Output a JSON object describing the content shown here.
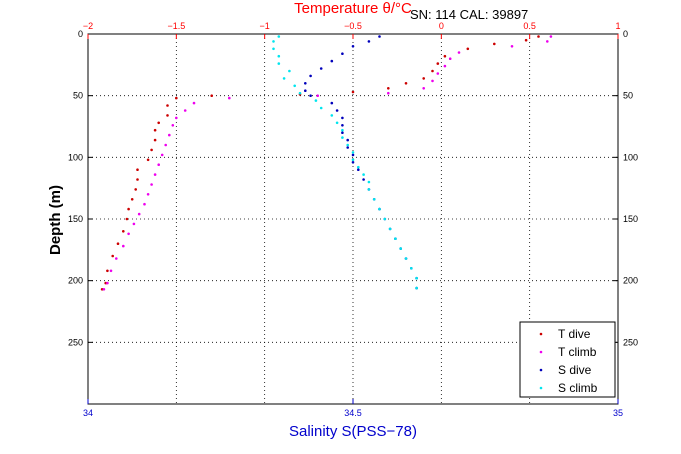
{
  "chart_data": {
    "type": "scatter",
    "top_title": "Temperature θ/°C",
    "annotation": "SN: 114  CAL: 39897",
    "ylabel": "Depth (m)",
    "xlabel_bottom": "Salinity S(PSS−78)",
    "y_axis": {
      "range": [
        0,
        300
      ],
      "inverted": true,
      "ticks": [
        "0",
        "50",
        "100",
        "150",
        "200",
        "250"
      ]
    },
    "x_top_temperature": {
      "range": [
        -2,
        1
      ],
      "ticks": [
        "−2",
        "−1.5",
        "−1",
        "−0.5",
        "0",
        "0.5",
        "1"
      ]
    },
    "x_bottom_salinity": {
      "range": [
        34,
        35
      ],
      "ticks": [
        "34",
        "34.5",
        "35"
      ]
    },
    "grid": true,
    "legend": {
      "placement": "bottom-right",
      "entries": [
        "T dive",
        "T climb",
        "S dive",
        "S climb"
      ]
    },
    "colors": {
      "temperature_axis": "#ff0000",
      "salinity_axis": "#0000cc",
      "t_dive": "#cc0000",
      "t_climb": "#ee00ee",
      "s_dive": "#0000bb",
      "s_climb": "#00e5ee"
    },
    "series": [
      {
        "name": "T dive",
        "x_axis": "temperature",
        "points": [
          [
            0.55,
            2
          ],
          [
            0.48,
            5
          ],
          [
            0.3,
            8
          ],
          [
            0.15,
            12
          ],
          [
            0.02,
            18
          ],
          [
            -0.02,
            24
          ],
          [
            -0.05,
            30
          ],
          [
            -0.1,
            36
          ],
          [
            -0.2,
            40
          ],
          [
            -0.3,
            44
          ],
          [
            -0.5,
            47
          ],
          [
            -0.8,
            49
          ],
          [
            -1.3,
            50
          ],
          [
            -1.5,
            52
          ],
          [
            -1.55,
            58
          ],
          [
            -1.55,
            66
          ],
          [
            -1.6,
            72
          ],
          [
            -1.62,
            78
          ],
          [
            -1.62,
            86
          ],
          [
            -1.64,
            94
          ],
          [
            -1.66,
            102
          ],
          [
            -1.72,
            110
          ],
          [
            -1.72,
            118
          ],
          [
            -1.73,
            126
          ],
          [
            -1.75,
            134
          ],
          [
            -1.77,
            142
          ],
          [
            -1.78,
            150
          ],
          [
            -1.8,
            160
          ],
          [
            -1.83,
            170
          ],
          [
            -1.86,
            180
          ],
          [
            -1.89,
            192
          ],
          [
            -1.9,
            202
          ],
          [
            -1.92,
            207
          ]
        ]
      },
      {
        "name": "T climb",
        "x_axis": "temperature",
        "points": [
          [
            0.62,
            2
          ],
          [
            0.6,
            6
          ],
          [
            0.4,
            10
          ],
          [
            0.1,
            15
          ],
          [
            0.05,
            20
          ],
          [
            0.02,
            26
          ],
          [
            -0.02,
            32
          ],
          [
            -0.05,
            38
          ],
          [
            -0.1,
            44
          ],
          [
            -0.3,
            48
          ],
          [
            -0.7,
            50
          ],
          [
            -1.2,
            52
          ],
          [
            -1.4,
            56
          ],
          [
            -1.45,
            62
          ],
          [
            -1.5,
            68
          ],
          [
            -1.52,
            74
          ],
          [
            -1.54,
            82
          ],
          [
            -1.56,
            90
          ],
          [
            -1.58,
            98
          ],
          [
            -1.6,
            106
          ],
          [
            -1.62,
            114
          ],
          [
            -1.64,
            122
          ],
          [
            -1.66,
            130
          ],
          [
            -1.68,
            138
          ],
          [
            -1.71,
            146
          ],
          [
            -1.74,
            154
          ],
          [
            -1.77,
            162
          ],
          [
            -1.8,
            172
          ],
          [
            -1.84,
            182
          ],
          [
            -1.87,
            192
          ],
          [
            -1.89,
            202
          ],
          [
            -1.91,
            207
          ]
        ]
      },
      {
        "name": "S dive",
        "x_axis": "salinity",
        "points": [
          [
            34.55,
            2
          ],
          [
            34.53,
            6
          ],
          [
            34.5,
            10
          ],
          [
            34.48,
            16
          ],
          [
            34.46,
            22
          ],
          [
            34.44,
            28
          ],
          [
            34.42,
            34
          ],
          [
            34.41,
            40
          ],
          [
            34.41,
            46
          ],
          [
            34.42,
            50
          ],
          [
            34.46,
            56
          ],
          [
            34.47,
            62
          ],
          [
            34.48,
            68
          ],
          [
            34.48,
            74
          ],
          [
            34.48,
            80
          ],
          [
            34.49,
            86
          ],
          [
            34.49,
            92
          ],
          [
            34.5,
            98
          ],
          [
            34.5,
            104
          ],
          [
            34.51,
            110
          ],
          [
            34.52,
            118
          ],
          [
            34.53,
            126
          ],
          [
            34.54,
            134
          ],
          [
            34.55,
            142
          ],
          [
            34.56,
            150
          ],
          [
            34.57,
            158
          ],
          [
            34.58,
            166
          ],
          [
            34.59,
            174
          ],
          [
            34.6,
            182
          ],
          [
            34.61,
            190
          ],
          [
            34.62,
            198
          ],
          [
            34.62,
            206
          ]
        ]
      },
      {
        "name": "S climb",
        "x_axis": "salinity",
        "points": [
          [
            34.36,
            2
          ],
          [
            34.35,
            6
          ],
          [
            34.35,
            12
          ],
          [
            34.36,
            18
          ],
          [
            34.36,
            24
          ],
          [
            34.38,
            30
          ],
          [
            34.37,
            36
          ],
          [
            34.39,
            42
          ],
          [
            34.4,
            48
          ],
          [
            34.43,
            54
          ],
          [
            34.44,
            60
          ],
          [
            34.46,
            66
          ],
          [
            34.47,
            72
          ],
          [
            34.48,
            78
          ],
          [
            34.48,
            84
          ],
          [
            34.49,
            90
          ],
          [
            34.5,
            96
          ],
          [
            34.5,
            102
          ],
          [
            34.51,
            108
          ],
          [
            34.52,
            114
          ],
          [
            34.53,
            120
          ],
          [
            34.53,
            126
          ],
          [
            34.54,
            134
          ],
          [
            34.55,
            142
          ],
          [
            34.56,
            150
          ],
          [
            34.57,
            158
          ],
          [
            34.58,
            166
          ],
          [
            34.59,
            174
          ],
          [
            34.6,
            182
          ],
          [
            34.61,
            190
          ],
          [
            34.62,
            198
          ],
          [
            34.62,
            206
          ]
        ]
      }
    ]
  }
}
